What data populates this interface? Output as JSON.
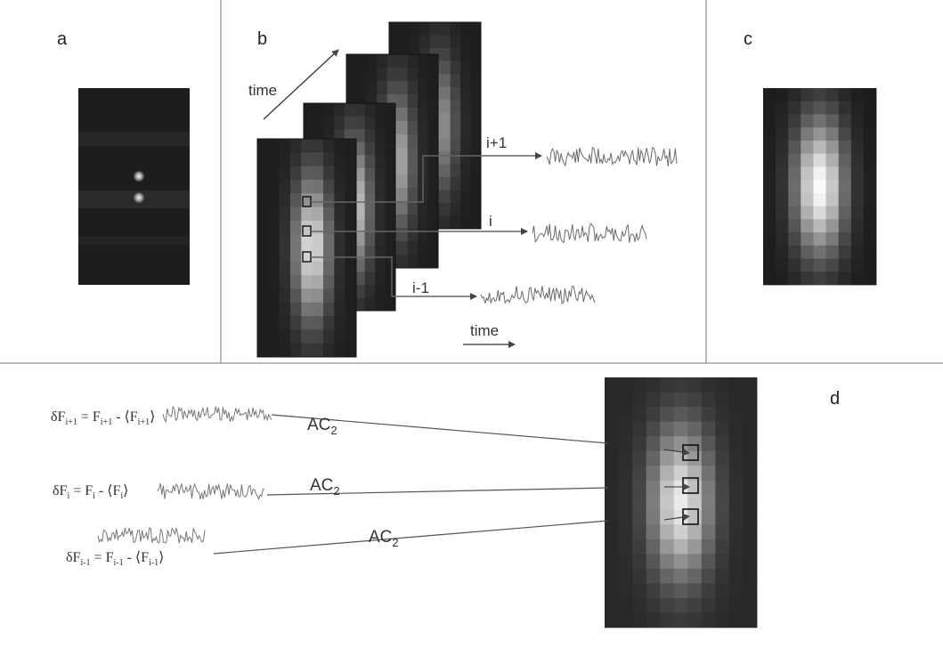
{
  "panels": {
    "a": "a",
    "b": "b",
    "c": "c",
    "d": "d"
  },
  "panel_b": {
    "time_diagonal": "time",
    "time_axis": "time",
    "traces": [
      {
        "label": "i+1"
      },
      {
        "label": "i"
      },
      {
        "label": "i-1"
      }
    ]
  },
  "panel_d": {
    "equations": [
      {
        "lhs_prefix": "δF",
        "lhs_sub": "i+1",
        "mid": " = F",
        "mid_sub": "i+1",
        "rest": " - ⟨F",
        "rest_sub": "i+1",
        "close": "⟩"
      },
      {
        "lhs_prefix": "δF",
        "lhs_sub": "i",
        "mid": " = F",
        "mid_sub": "i",
        "rest": " - ⟨F",
        "rest_sub": "i",
        "close": "⟩"
      },
      {
        "lhs_prefix": "δF",
        "lhs_sub": "i-1",
        "mid": " = F",
        "mid_sub": "i-1",
        "rest": " - ⟨F",
        "rest_sub": "i-1",
        "close": "⟩"
      }
    ],
    "ac_labels": [
      {
        "text": "AC",
        "sub": "2"
      },
      {
        "text": "AC",
        "sub": "2"
      },
      {
        "text": "AC",
        "sub": "2"
      }
    ]
  },
  "colors": {
    "frame_dark": "#1c1c1c",
    "trace": "#6a6a6a",
    "line": "#555555",
    "divider": "#777777"
  }
}
